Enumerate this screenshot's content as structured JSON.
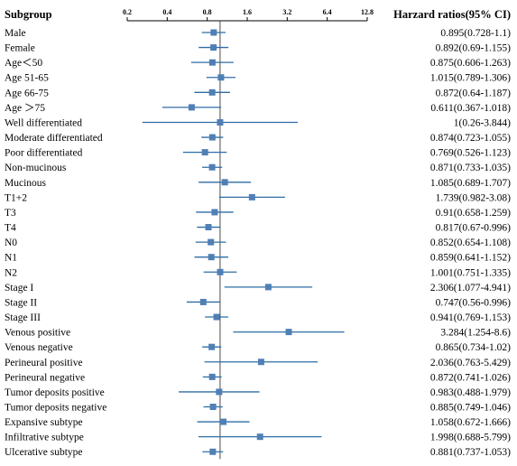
{
  "header": {
    "subgroup": "Subgroup",
    "hr_column": "Harzard ratios(95% CI)"
  },
  "colors": {
    "marker": "#4f7fb5",
    "line": "#2e6ea6",
    "reference": "#4a4a4a",
    "axis": "#000000"
  },
  "chart_data": {
    "type": "forest",
    "x_scale": "log2",
    "xlim": [
      0.2,
      12.8
    ],
    "reference_line": 1,
    "ticks": [
      "0.2",
      "0.4",
      "0.8",
      "1.6",
      "3.2",
      "6.4",
      "12.8"
    ],
    "rows": [
      {
        "label": "Male",
        "hr": 0.895,
        "lo": 0.728,
        "hi": 1.1,
        "text": "0.895(0.728-1.1)"
      },
      {
        "label": "Female",
        "hr": 0.892,
        "lo": 0.69,
        "hi": 1.155,
        "text": "0.892(0.69-1.155)"
      },
      {
        "label": "Age＜50",
        "hr": 0.875,
        "lo": 0.606,
        "hi": 1.263,
        "text": "0.875(0.606-1.263)"
      },
      {
        "label": "Age 51-65",
        "hr": 1.015,
        "lo": 0.789,
        "hi": 1.306,
        "text": "1.015(0.789-1.306)"
      },
      {
        "label": "Age 66-75",
        "hr": 0.872,
        "lo": 0.64,
        "hi": 1.187,
        "text": "0.872(0.64-1.187)"
      },
      {
        "label": "Age ＞75",
        "hr": 0.611,
        "lo": 0.367,
        "hi": 1.018,
        "text": "0.611(0.367-1.018)"
      },
      {
        "label": "Well differentiated",
        "hr": 1,
        "lo": 0.26,
        "hi": 3.844,
        "text": "1(0.26-3.844)"
      },
      {
        "label": "Moderate differentiated",
        "hr": 0.874,
        "lo": 0.723,
        "hi": 1.055,
        "text": "0.874(0.723-1.055)"
      },
      {
        "label": "Poor differentiated",
        "hr": 0.769,
        "lo": 0.526,
        "hi": 1.123,
        "text": "0.769(0.526-1.123)"
      },
      {
        "label": "Non-mucinous",
        "hr": 0.871,
        "lo": 0.733,
        "hi": 1.035,
        "text": "0.871(0.733-1.035)"
      },
      {
        "label": "Mucinous",
        "hr": 1.085,
        "lo": 0.689,
        "hi": 1.707,
        "text": "1.085(0.689-1.707)"
      },
      {
        "label": "T1+2",
        "hr": 1.739,
        "lo": 0.982,
        "hi": 3.08,
        "text": "1.739(0.982-3.08)"
      },
      {
        "label": "T3",
        "hr": 0.91,
        "lo": 0.658,
        "hi": 1.259,
        "text": "0.91(0.658-1.259)"
      },
      {
        "label": "T4",
        "hr": 0.817,
        "lo": 0.67,
        "hi": 0.996,
        "text": "0.817(0.67-0.996)"
      },
      {
        "label": "N0",
        "hr": 0.852,
        "lo": 0.654,
        "hi": 1.108,
        "text": "0.852(0.654-1.108)"
      },
      {
        "label": "N1",
        "hr": 0.859,
        "lo": 0.641,
        "hi": 1.152,
        "text": "0.859(0.641-1.152)"
      },
      {
        "label": "N2",
        "hr": 1.001,
        "lo": 0.751,
        "hi": 1.335,
        "text": "1.001(0.751-1.335)"
      },
      {
        "label": "Stage I",
        "hr": 2.306,
        "lo": 1.077,
        "hi": 4.941,
        "text": "2.306(1.077-4.941)"
      },
      {
        "label": "Stage II",
        "hr": 0.747,
        "lo": 0.56,
        "hi": 0.996,
        "text": "0.747(0.56-0.996)"
      },
      {
        "label": "Stage III",
        "hr": 0.941,
        "lo": 0.769,
        "hi": 1.153,
        "text": "0.941(0.769-1.153)"
      },
      {
        "label": "Venous positive",
        "hr": 3.284,
        "lo": 1.254,
        "hi": 8.6,
        "text": "3.284(1.254-8.6)"
      },
      {
        "label": "Venous negative",
        "hr": 0.865,
        "lo": 0.734,
        "hi": 1.02,
        "text": "0.865(0.734-1.02)"
      },
      {
        "label": "Perineural positive",
        "hr": 2.036,
        "lo": 0.763,
        "hi": 5.429,
        "text": "2.036(0.763-5.429)"
      },
      {
        "label": "Perineural negative",
        "hr": 0.872,
        "lo": 0.741,
        "hi": 1.026,
        "text": "0.872(0.741-1.026)"
      },
      {
        "label": "Tumor deposits positive",
        "hr": 0.983,
        "lo": 0.488,
        "hi": 1.979,
        "text": "0.983(0.488-1.979)"
      },
      {
        "label": "Tumor deposits negative",
        "hr": 0.885,
        "lo": 0.749,
        "hi": 1.046,
        "text": "0.885(0.749-1.046)"
      },
      {
        "label": "Expansive subtype",
        "hr": 1.058,
        "lo": 0.672,
        "hi": 1.666,
        "text": "1.058(0.672-1.666)"
      },
      {
        "label": "Infiltrative subtype",
        "hr": 1.998,
        "lo": 0.688,
        "hi": 5.799,
        "text": "1.998(0.688-5.799)"
      },
      {
        "label": "Ulcerative subtype",
        "hr": 0.881,
        "lo": 0.737,
        "hi": 1.053,
        "text": "0.881(0.737-1.053)"
      }
    ]
  }
}
